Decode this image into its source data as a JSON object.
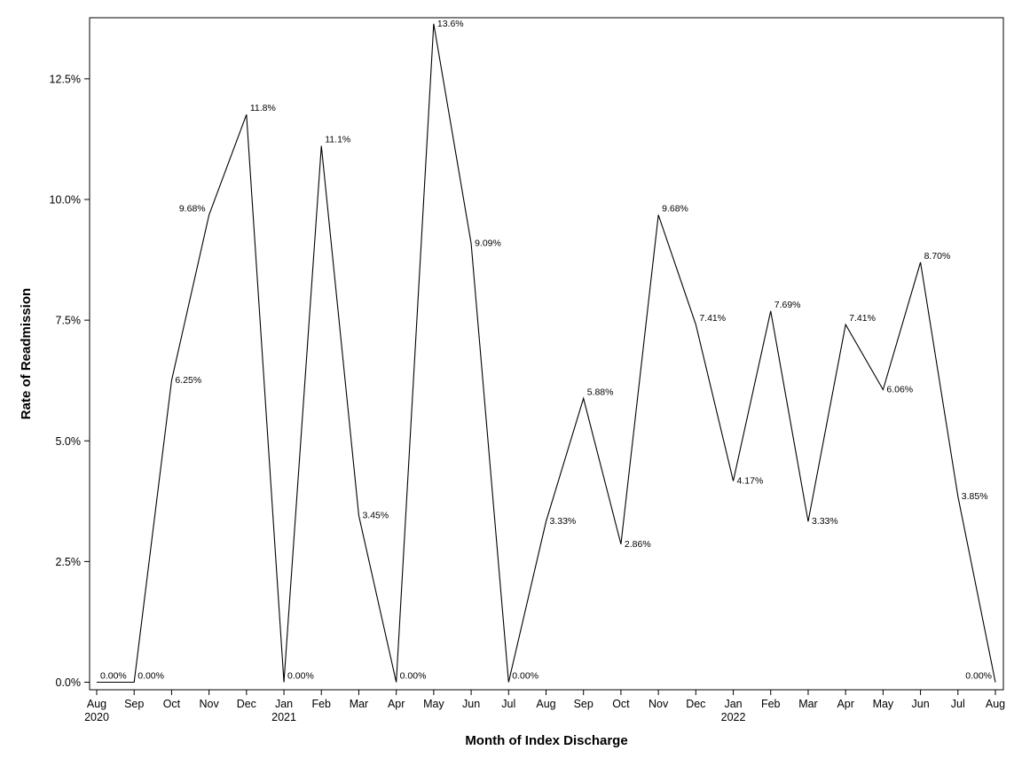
{
  "chart_data": {
    "type": "line",
    "title": "",
    "xlabel": "Month of Index Discharge",
    "ylabel": "Rate of Readmission",
    "ylim": [
      0,
      13.6
    ],
    "yticks": [
      {
        "value": 0,
        "label": "0.0%"
      },
      {
        "value": 2.5,
        "label": "2.5%"
      },
      {
        "value": 5,
        "label": "5.0%"
      },
      {
        "value": 7.5,
        "label": "7.5%"
      },
      {
        "value": 10,
        "label": "10.0%"
      },
      {
        "value": 12.5,
        "label": "12.5%"
      }
    ],
    "grid": false,
    "color": "#000000",
    "series": [
      {
        "points": [
          {
            "x": "Aug",
            "year": "2020",
            "y": 0,
            "label": "0.00%",
            "pos": "above"
          },
          {
            "x": "Sep",
            "year": "",
            "y": 0,
            "label": "0.00%",
            "pos": "above-right"
          },
          {
            "x": "Oct",
            "year": "",
            "y": 6.25,
            "label": "6.25%",
            "pos": "right"
          },
          {
            "x": "Nov",
            "year": "",
            "y": 9.68,
            "label": "9.68%",
            "pos": "left"
          },
          {
            "x": "Dec",
            "year": "",
            "y": 11.76,
            "label": "11.8%",
            "pos": "above-right"
          },
          {
            "x": "Jan",
            "year": "2021",
            "y": 0,
            "label": "0.00%",
            "pos": "above-right"
          },
          {
            "x": "Feb",
            "year": "",
            "y": 11.11,
            "label": "11.1%",
            "pos": "above-right"
          },
          {
            "x": "Mar",
            "year": "",
            "y": 3.45,
            "label": "3.45%",
            "pos": "right"
          },
          {
            "x": "Apr",
            "year": "",
            "y": 0,
            "label": "0.00%",
            "pos": "above-right"
          },
          {
            "x": "May",
            "year": "",
            "y": 13.64,
            "label": "13.6%",
            "pos": "right"
          },
          {
            "x": "Jun",
            "year": "",
            "y": 9.09,
            "label": "9.09%",
            "pos": "right"
          },
          {
            "x": "Jul",
            "year": "",
            "y": 0,
            "label": "0.00%",
            "pos": "above-right"
          },
          {
            "x": "Aug",
            "year": "",
            "y": 3.33,
            "label": "3.33%",
            "pos": "right"
          },
          {
            "x": "Sep",
            "year": "",
            "y": 5.88,
            "label": "5.88%",
            "pos": "above-right"
          },
          {
            "x": "Oct",
            "year": "",
            "y": 2.86,
            "label": "2.86%",
            "pos": "right"
          },
          {
            "x": "Nov",
            "year": "",
            "y": 9.68,
            "label": "9.68%",
            "pos": "above-right"
          },
          {
            "x": "Dec",
            "year": "",
            "y": 7.41,
            "label": "7.41%",
            "pos": "above-right"
          },
          {
            "x": "Jan",
            "year": "2022",
            "y": 4.17,
            "label": "4.17%",
            "pos": "right"
          },
          {
            "x": "Feb",
            "year": "",
            "y": 7.69,
            "label": "7.69%",
            "pos": "above-right"
          },
          {
            "x": "Mar",
            "year": "",
            "y": 3.33,
            "label": "3.33%",
            "pos": "right"
          },
          {
            "x": "Apr",
            "year": "",
            "y": 7.41,
            "label": "7.41%",
            "pos": "above-right"
          },
          {
            "x": "May",
            "year": "",
            "y": 6.06,
            "label": "6.06%",
            "pos": "right"
          },
          {
            "x": "Jun",
            "year": "",
            "y": 8.7,
            "label": "8.70%",
            "pos": "above-right"
          },
          {
            "x": "Jul",
            "year": "",
            "y": 3.85,
            "label": "3.85%",
            "pos": "right"
          },
          {
            "x": "Aug",
            "year": "",
            "y": 0,
            "label": "0.00%",
            "pos": "above-left"
          }
        ]
      }
    ]
  }
}
